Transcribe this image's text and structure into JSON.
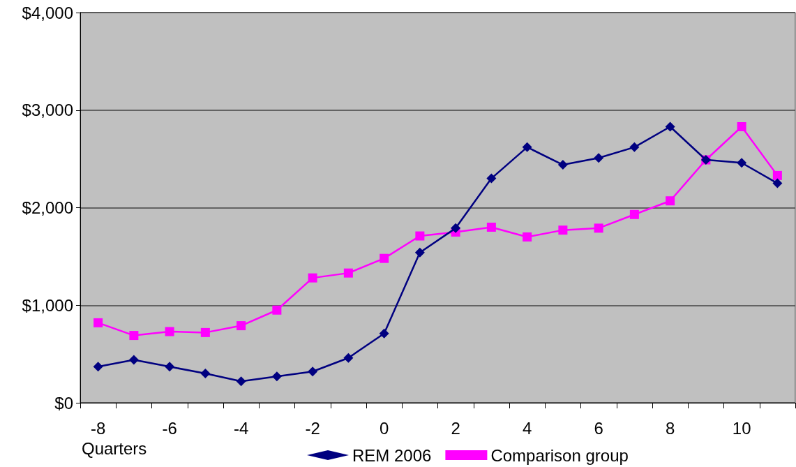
{
  "chart_data": {
    "type": "line",
    "xlabel": "Quarters",
    "categories": [
      "-8",
      null,
      "-6",
      null,
      "-4",
      null,
      "-2",
      null,
      "0",
      null,
      "2",
      null,
      "4",
      null,
      "6",
      null,
      "8",
      null,
      "10",
      null
    ],
    "series": [
      {
        "name": "REM 2006",
        "color": "#000080",
        "marker": "diamond",
        "values": [
          370,
          440,
          370,
          300,
          220,
          270,
          320,
          460,
          710,
          1540,
          1790,
          2300,
          2620,
          2440,
          2510,
          2620,
          2830,
          2490,
          2460,
          2250
        ]
      },
      {
        "name": "Comparison group",
        "color": "#ff00ff",
        "marker": "square",
        "values": [
          820,
          690,
          730,
          720,
          790,
          950,
          1280,
          1330,
          1480,
          1710,
          1750,
          1800,
          1700,
          1770,
          1790,
          1930,
          2070,
          2490,
          2830,
          2330
        ]
      }
    ],
    "ylim": [
      0,
      4000
    ],
    "yticks": [
      {
        "value": 0,
        "label": "$0"
      },
      {
        "value": 1000,
        "label": "$1,000"
      },
      {
        "value": 2000,
        "label": "$2,000"
      },
      {
        "value": 3000,
        "label": "$3,000"
      },
      {
        "value": 4000,
        "label": "$4,000"
      }
    ],
    "grid": "y",
    "legend": "bottom",
    "line_style": "solid"
  }
}
